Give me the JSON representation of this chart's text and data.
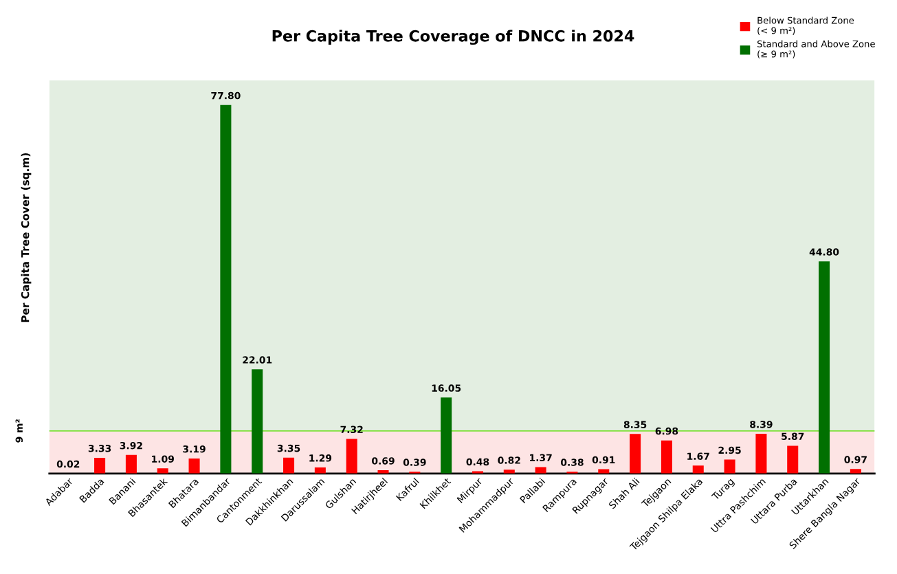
{
  "chart_data": {
    "type": "bar",
    "title": "Per Capita Tree Coverage of DNCC in 2024",
    "ylabel": "Per Capita Tree Cover (sq.m)",
    "categories": [
      "Adabar",
      "Badda",
      "Banani",
      "Bhasantek",
      "Bhatara",
      "Bimanbandar",
      "Cantonment",
      "Dakkhinkhan",
      "Darussalam",
      "Gulshan",
      "Hatirjheel",
      "Kafrul",
      "Khilkhet",
      "Mirpur",
      "Mohammadpur",
      "Pallabi",
      "Rampura",
      "Rupnagar",
      "Shah Ali",
      "Tejgaon",
      "Tejgaon Shilpa Elaka",
      "Turag",
      "Uttra Pashchim",
      "Uttara Purba",
      "Uttarkhan",
      "Shere Bangla Nagar"
    ],
    "stacked": true,
    "series": [
      {
        "name": "Below Standard Zone\n(< 9 m²)",
        "color": "#fe0000",
        "values": [
          0.02,
          3.33,
          3.92,
          1.09,
          3.19,
          null,
          null,
          3.35,
          1.29,
          7.32,
          0.69,
          0.39,
          null,
          0.48,
          0.82,
          1.37,
          0.38,
          0.91,
          8.35,
          6.98,
          1.67,
          2.95,
          8.39,
          5.87,
          null,
          0.97
        ],
        "value_labels": [
          "0.02",
          "3.33",
          "3.92",
          "1.09",
          "3.19",
          null,
          null,
          "3.35",
          "1.29",
          "7.32",
          "0.69",
          "0.39",
          null,
          "0.48",
          "0.82",
          "1.37",
          "0.38",
          "0.91",
          "8.35",
          "6.98",
          "1.67",
          "2.95",
          "8.39",
          "5.87",
          null,
          "0.97"
        ]
      },
      {
        "name": "Standard and Above Zone\n(≥ 9 m²)",
        "color": "#017001",
        "values": [
          null,
          null,
          null,
          null,
          null,
          77.8,
          22.01,
          null,
          null,
          null,
          null,
          null,
          16.05,
          null,
          null,
          null,
          null,
          null,
          null,
          null,
          null,
          null,
          null,
          null,
          44.8,
          null
        ],
        "value_labels": [
          null,
          null,
          null,
          null,
          null,
          "77.80",
          "22.01",
          null,
          null,
          null,
          null,
          null,
          "16.05",
          null,
          null,
          null,
          null,
          null,
          null,
          null,
          null,
          null,
          null,
          null,
          "44.80",
          null
        ]
      }
    ],
    "ylim": [
      0,
      83
    ],
    "tick_labels": "x",
    "ref_lines": [
      {
        "axis": "y",
        "value": 9,
        "label": "9 m²",
        "color": "#7ee03a"
      }
    ],
    "bands": [
      {
        "axis": "y",
        "from": 0,
        "to": 9,
        "color": "#fde4e4"
      },
      {
        "axis": "y",
        "from": 9,
        "to": 83,
        "color": "#e3eee1"
      }
    ],
    "legend": "top right",
    "grid": false
  }
}
